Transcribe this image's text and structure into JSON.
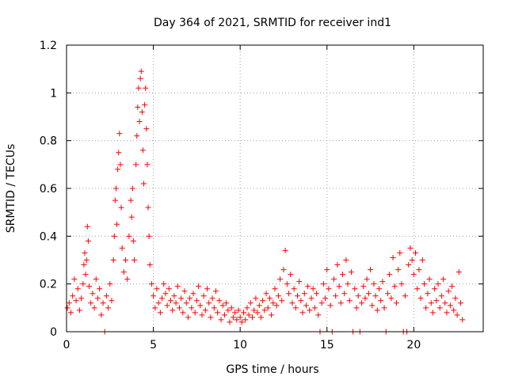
{
  "chart_data": {
    "type": "scatter",
    "title": "Day 364 of 2021, SRMTID for receiver ind1",
    "xlabel": "GPS time / hours",
    "ylabel": "SRMTID / TECUs",
    "xlim": [
      0,
      24
    ],
    "ylim": [
      0,
      1.2
    ],
    "xticks": [
      0,
      5,
      10,
      15,
      20
    ],
    "xtick_labels": [
      "0",
      "5",
      "10",
      "15",
      "20"
    ],
    "yticks": [
      0,
      0.2,
      0.4,
      0.6,
      0.8,
      1.0,
      1.2
    ],
    "ytick_labels": [
      "0",
      "0.2",
      "0.4",
      "0.6",
      "0.8",
      "1",
      "1.2"
    ],
    "grid": true,
    "series": [
      {
        "name": "SRMTID",
        "color": "#ff0000",
        "marker": "plus",
        "points": [
          [
            0.05,
            0.1
          ],
          [
            0.15,
            0.12
          ],
          [
            0.25,
            0.08
          ],
          [
            0.35,
            0.15
          ],
          [
            0.45,
            0.22
          ],
          [
            0.55,
            0.13
          ],
          [
            0.65,
            0.18
          ],
          [
            0.75,
            0.09
          ],
          [
            0.85,
            0.14
          ],
          [
            0.95,
            0.2
          ],
          [
            1.0,
            0.28
          ],
          [
            1.05,
            0.33
          ],
          [
            1.1,
            0.24
          ],
          [
            1.15,
            0.3
          ],
          [
            1.2,
            0.44
          ],
          [
            1.25,
            0.38
          ],
          [
            1.3,
            0.19
          ],
          [
            1.4,
            0.12
          ],
          [
            1.5,
            0.16
          ],
          [
            1.6,
            0.1
          ],
          [
            1.7,
            0.22
          ],
          [
            1.8,
            0.14
          ],
          [
            1.9,
            0.18
          ],
          [
            2.0,
            0.07
          ],
          [
            2.1,
            0.12
          ],
          [
            2.2,
            0.0
          ],
          [
            2.3,
            0.15
          ],
          [
            2.4,
            0.1
          ],
          [
            2.5,
            0.2
          ],
          [
            2.6,
            0.13
          ],
          [
            2.7,
            0.3
          ],
          [
            2.75,
            0.4
          ],
          [
            2.8,
            0.55
          ],
          [
            2.85,
            0.6
          ],
          [
            2.9,
            0.45
          ],
          [
            2.95,
            0.68
          ],
          [
            3.0,
            0.75
          ],
          [
            3.05,
            0.83
          ],
          [
            3.1,
            0.7
          ],
          [
            3.15,
            0.52
          ],
          [
            3.2,
            0.35
          ],
          [
            3.3,
            0.25
          ],
          [
            3.4,
            0.3
          ],
          [
            3.5,
            0.22
          ],
          [
            3.6,
            0.4
          ],
          [
            3.7,
            0.55
          ],
          [
            3.75,
            0.48
          ],
          [
            3.8,
            0.6
          ],
          [
            3.85,
            0.38
          ],
          [
            3.9,
            0.3
          ],
          [
            4.0,
            0.7
          ],
          [
            4.05,
            0.82
          ],
          [
            4.1,
            0.94
          ],
          [
            4.15,
            1.02
          ],
          [
            4.2,
            0.88
          ],
          [
            4.25,
            1.06
          ],
          [
            4.3,
            1.09
          ],
          [
            4.35,
            0.92
          ],
          [
            4.4,
            0.76
          ],
          [
            4.45,
            0.62
          ],
          [
            4.5,
            0.95
          ],
          [
            4.55,
            1.02
          ],
          [
            4.6,
            0.85
          ],
          [
            4.65,
            0.7
          ],
          [
            4.7,
            0.52
          ],
          [
            4.75,
            0.4
          ],
          [
            4.8,
            0.28
          ],
          [
            4.9,
            0.2
          ],
          [
            5.0,
            0.15
          ],
          [
            5.1,
            0.1
          ],
          [
            5.2,
            0.18
          ],
          [
            5.3,
            0.12
          ],
          [
            5.4,
            0.08
          ],
          [
            5.5,
            0.14
          ],
          [
            5.6,
            0.2
          ],
          [
            5.7,
            0.16
          ],
          [
            5.8,
            0.11
          ],
          [
            5.9,
            0.18
          ],
          [
            6.0,
            0.13
          ],
          [
            6.1,
            0.09
          ],
          [
            6.2,
            0.15
          ],
          [
            6.3,
            0.12
          ],
          [
            6.4,
            0.19
          ],
          [
            6.5,
            0.1
          ],
          [
            6.6,
            0.14
          ],
          [
            6.7,
            0.08
          ],
          [
            6.8,
            0.17
          ],
          [
            6.9,
            0.12
          ],
          [
            7.0,
            0.06
          ],
          [
            7.1,
            0.14
          ],
          [
            7.2,
            0.1
          ],
          [
            7.3,
            0.16
          ],
          [
            7.4,
            0.08
          ],
          [
            7.5,
            0.13
          ],
          [
            7.6,
            0.19
          ],
          [
            7.7,
            0.11
          ],
          [
            7.8,
            0.07
          ],
          [
            7.9,
            0.15
          ],
          [
            8.0,
            0.09
          ],
          [
            8.1,
            0.18
          ],
          [
            8.2,
            0.12
          ],
          [
            8.3,
            0.06
          ],
          [
            8.4,
            0.14
          ],
          [
            8.5,
            0.1
          ],
          [
            8.6,
            0.17
          ],
          [
            8.7,
            0.08
          ],
          [
            8.8,
            0.13
          ],
          [
            8.9,
            0.05
          ],
          [
            9.0,
            0.11
          ],
          [
            9.1,
            0.07
          ],
          [
            9.2,
            0.12
          ],
          [
            9.3,
            0.09
          ],
          [
            9.4,
            0.04
          ],
          [
            9.5,
            0.1
          ],
          [
            9.6,
            0.06
          ],
          [
            9.7,
            0.08
          ],
          [
            9.8,
            0.05
          ],
          [
            9.9,
            0.09
          ],
          [
            10.0,
            0.06
          ],
          [
            10.1,
            0.04
          ],
          [
            10.2,
            0.08
          ],
          [
            10.3,
            0.05
          ],
          [
            10.4,
            0.1
          ],
          [
            10.5,
            0.07
          ],
          [
            10.6,
            0.12
          ],
          [
            10.7,
            0.06
          ],
          [
            10.8,
            0.09
          ],
          [
            10.9,
            0.14
          ],
          [
            11.0,
            0.08
          ],
          [
            11.1,
            0.11
          ],
          [
            11.2,
            0.06
          ],
          [
            11.3,
            0.13
          ],
          [
            11.4,
            0.09
          ],
          [
            11.5,
            0.16
          ],
          [
            11.6,
            0.1
          ],
          [
            11.7,
            0.14
          ],
          [
            11.8,
            0.07
          ],
          [
            11.9,
            0.12
          ],
          [
            12.0,
            0.18
          ],
          [
            12.1,
            0.11
          ],
          [
            12.2,
            0.15
          ],
          [
            12.3,
            0.22
          ],
          [
            12.4,
            0.13
          ],
          [
            12.5,
            0.26
          ],
          [
            12.6,
            0.34
          ],
          [
            12.7,
            0.2
          ],
          [
            12.8,
            0.16
          ],
          [
            12.9,
            0.24
          ],
          [
            13.0,
            0.12
          ],
          [
            13.1,
            0.18
          ],
          [
            13.2,
            0.1
          ],
          [
            13.3,
            0.15
          ],
          [
            13.4,
            0.21
          ],
          [
            13.5,
            0.13
          ],
          [
            13.6,
            0.08
          ],
          [
            13.7,
            0.16
          ],
          [
            13.8,
            0.11
          ],
          [
            13.9,
            0.19
          ],
          [
            14.0,
            0.09
          ],
          [
            14.1,
            0.14
          ],
          [
            14.2,
            0.18
          ],
          [
            14.3,
            0.1
          ],
          [
            14.4,
            0.16
          ],
          [
            14.5,
            0.07
          ],
          [
            14.6,
            0.0
          ],
          [
            14.7,
            0.12
          ],
          [
            14.8,
            0.2
          ],
          [
            14.9,
            0.14
          ],
          [
            15.0,
            0.26
          ],
          [
            15.1,
            0.18
          ],
          [
            15.2,
            0.11
          ],
          [
            15.3,
            0.0
          ],
          [
            15.4,
            0.22
          ],
          [
            15.5,
            0.15
          ],
          [
            15.6,
            0.28
          ],
          [
            15.7,
            0.19
          ],
          [
            15.8,
            0.12
          ],
          [
            15.9,
            0.24
          ],
          [
            16.0,
            0.16
          ],
          [
            16.1,
            0.3
          ],
          [
            16.2,
            0.2
          ],
          [
            16.3,
            0.13
          ],
          [
            16.4,
            0.25
          ],
          [
            16.5,
            0.0
          ],
          [
            16.6,
            0.18
          ],
          [
            16.7,
            0.1
          ],
          [
            16.8,
            0.15
          ],
          [
            16.9,
            0.0
          ],
          [
            17.0,
            0.12
          ],
          [
            17.1,
            0.19
          ],
          [
            17.2,
            0.14
          ],
          [
            17.3,
            0.22
          ],
          [
            17.4,
            0.16
          ],
          [
            17.5,
            0.26
          ],
          [
            17.6,
            0.11
          ],
          [
            17.7,
            0.2
          ],
          [
            17.8,
            0.15
          ],
          [
            17.9,
            0.09
          ],
          [
            18.0,
            0.18
          ],
          [
            18.1,
            0.13
          ],
          [
            18.2,
            0.21
          ],
          [
            18.3,
            0.1
          ],
          [
            18.4,
            0.0
          ],
          [
            18.5,
            0.16
          ],
          [
            18.6,
            0.24
          ],
          [
            18.7,
            0.14
          ],
          [
            18.8,
            0.31
          ],
          [
            18.9,
            0.19
          ],
          [
            19.0,
            0.12
          ],
          [
            19.1,
            0.26
          ],
          [
            19.2,
            0.33
          ],
          [
            19.3,
            0.2
          ],
          [
            19.4,
            0.0
          ],
          [
            19.5,
            0.15
          ],
          [
            19.6,
            0.0
          ],
          [
            19.7,
            0.28
          ],
          [
            19.8,
            0.35
          ],
          [
            19.9,
            0.3
          ],
          [
            20.0,
            0.24
          ],
          [
            20.1,
            0.33
          ],
          [
            20.2,
            0.18
          ],
          [
            20.3,
            0.26
          ],
          [
            20.4,
            0.14
          ],
          [
            20.5,
            0.3
          ],
          [
            20.6,
            0.2
          ],
          [
            20.7,
            0.1
          ],
          [
            20.8,
            0.16
          ],
          [
            20.9,
            0.22
          ],
          [
            21.0,
            0.12
          ],
          [
            21.1,
            0.08
          ],
          [
            21.2,
            0.18
          ],
          [
            21.3,
            0.13
          ],
          [
            21.4,
            0.2
          ],
          [
            21.5,
            0.1
          ],
          [
            21.6,
            0.15
          ],
          [
            21.7,
            0.22
          ],
          [
            21.8,
            0.12
          ],
          [
            21.9,
            0.08
          ],
          [
            22.0,
            0.17
          ],
          [
            22.1,
            0.11
          ],
          [
            22.2,
            0.19
          ],
          [
            22.3,
            0.09
          ],
          [
            22.4,
            0.14
          ],
          [
            22.5,
            0.07
          ],
          [
            22.6,
            0.25
          ],
          [
            22.7,
            0.12
          ],
          [
            22.8,
            0.05
          ]
        ]
      }
    ]
  }
}
